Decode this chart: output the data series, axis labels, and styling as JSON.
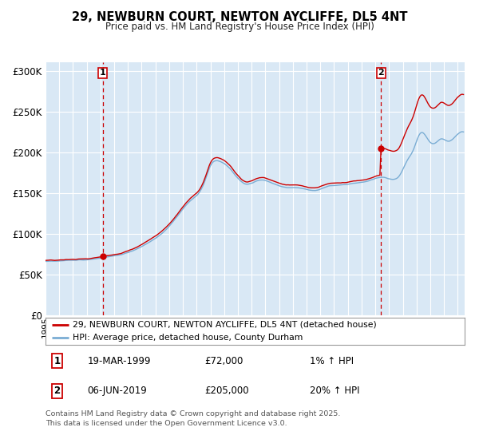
{
  "title1": "29, NEWBURN COURT, NEWTON AYCLIFFE, DL5 4NT",
  "title2": "Price paid vs. HM Land Registry's House Price Index (HPI)",
  "legend1": "29, NEWBURN COURT, NEWTON AYCLIFFE, DL5 4NT (detached house)",
  "legend2": "HPI: Average price, detached house, County Durham",
  "purchase1_date": "19-MAR-1999",
  "purchase1_price": 72000,
  "purchase1_label": "1% ↑ HPI",
  "purchase2_date": "06-JUN-2019",
  "purchase2_price": 205000,
  "purchase2_label": "20% ↑ HPI",
  "footer": "Contains HM Land Registry data © Crown copyright and database right 2025.\nThis data is licensed under the Open Government Licence v3.0.",
  "ylim": [
    0,
    310000
  ],
  "yticks": [
    0,
    50000,
    100000,
    150000,
    200000,
    250000,
    300000
  ],
  "ytick_labels": [
    "£0",
    "£50K",
    "£100K",
    "£150K",
    "£200K",
    "£250K",
    "£300K"
  ],
  "bg_color": "#d9e8f5",
  "fig_color": "#ffffff",
  "red_line_color": "#cc0000",
  "blue_line_color": "#7aadd4",
  "marker_color": "#cc0000",
  "vline_color": "#cc0000",
  "grid_color": "#ffffff",
  "box_color": "#cc0000"
}
